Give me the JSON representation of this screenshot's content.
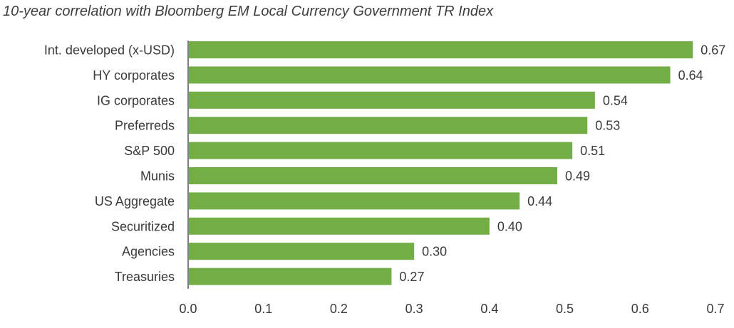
{
  "chart_data": {
    "type": "bar",
    "orientation": "horizontal",
    "title": "10-year correlation with Bloomberg EM Local Currency Government TR Index",
    "categories": [
      "Int. developed (x-USD)",
      "HY corporates",
      "IG corporates",
      "Preferreds",
      "S&P 500",
      "Munis",
      "US Aggregate",
      "Securitized",
      "Agencies",
      "Treasuries"
    ],
    "values": [
      0.67,
      0.64,
      0.54,
      0.53,
      0.51,
      0.49,
      0.44,
      0.4,
      0.3,
      0.27
    ],
    "value_labels": [
      "0.67",
      "0.64",
      "0.54",
      "0.53",
      "0.51",
      "0.49",
      "0.44",
      "0.40",
      "0.30",
      "0.27"
    ],
    "xlim": [
      0.0,
      0.7
    ],
    "xticks": [
      "0.0",
      "0.1",
      "0.2",
      "0.3",
      "0.4",
      "0.5",
      "0.6",
      "0.7"
    ],
    "xtick_values": [
      0.0,
      0.1,
      0.2,
      0.3,
      0.4,
      0.5,
      0.6,
      0.7
    ],
    "grid": false,
    "legend": "none",
    "colors": {
      "bar": "#72ad45",
      "axis": "#7f7f7f",
      "text": "#3a3a3a"
    }
  }
}
